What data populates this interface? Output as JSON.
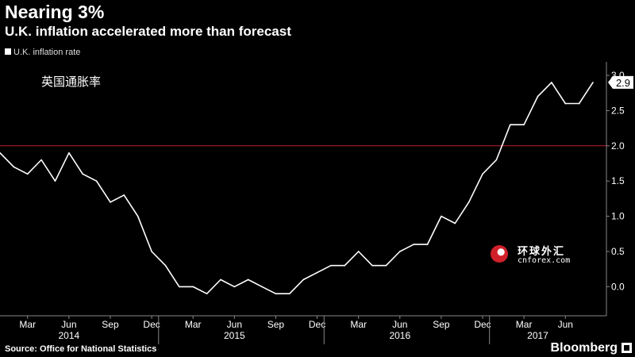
{
  "header": {
    "title": "Nearing 3%",
    "subtitle": "U.K. inflation accelerated more than forecast"
  },
  "legend": {
    "series_label": "U.K. inflation rate"
  },
  "annotation": "英国通胀率",
  "source": "Source: Office for National Statistics",
  "brand": "Bloomberg",
  "watermark": {
    "name": "环球外汇",
    "domain": "cnforex.com"
  },
  "colors": {
    "background": "#000000",
    "line": "#ffffff",
    "reference_line": "#c0202a",
    "last_value_label": "#ffffff"
  },
  "chart_data": {
    "type": "line",
    "title": "Nearing 3%",
    "subtitle": "U.K. inflation accelerated more than forecast",
    "x_unit": "month",
    "x_start": "2014-01",
    "x_end": "2017-08",
    "series": [
      {
        "name": "U.K. inflation rate",
        "points": [
          [
            "2014-01",
            1.9
          ],
          [
            "2014-02",
            1.7
          ],
          [
            "2014-03",
            1.6
          ],
          [
            "2014-04",
            1.8
          ],
          [
            "2014-05",
            1.5
          ],
          [
            "2014-06",
            1.9
          ],
          [
            "2014-07",
            1.6
          ],
          [
            "2014-08",
            1.5
          ],
          [
            "2014-09",
            1.2
          ],
          [
            "2014-10",
            1.3
          ],
          [
            "2014-11",
            1.0
          ],
          [
            "2014-12",
            0.5
          ],
          [
            "2015-01",
            0.3
          ],
          [
            "2015-02",
            0.0
          ],
          [
            "2015-03",
            0.0
          ],
          [
            "2015-04",
            -0.1
          ],
          [
            "2015-05",
            0.1
          ],
          [
            "2015-06",
            0.0
          ],
          [
            "2015-07",
            0.1
          ],
          [
            "2015-08",
            0.0
          ],
          [
            "2015-09",
            -0.1
          ],
          [
            "2015-10",
            -0.1
          ],
          [
            "2015-11",
            0.1
          ],
          [
            "2015-12",
            0.2
          ],
          [
            "2016-01",
            0.3
          ],
          [
            "2016-02",
            0.3
          ],
          [
            "2016-03",
            0.5
          ],
          [
            "2016-04",
            0.3
          ],
          [
            "2016-05",
            0.3
          ],
          [
            "2016-06",
            0.5
          ],
          [
            "2016-07",
            0.6
          ],
          [
            "2016-08",
            0.6
          ],
          [
            "2016-09",
            1.0
          ],
          [
            "2016-10",
            0.9
          ],
          [
            "2016-11",
            1.2
          ],
          [
            "2016-12",
            1.6
          ],
          [
            "2017-01",
            1.8
          ],
          [
            "2017-02",
            2.3
          ],
          [
            "2017-03",
            2.3
          ],
          [
            "2017-04",
            2.7
          ],
          [
            "2017-05",
            2.9
          ],
          [
            "2017-06",
            2.6
          ],
          [
            "2017-07",
            2.6
          ],
          [
            "2017-08",
            2.9
          ]
        ]
      }
    ],
    "reference_line": {
      "y": 2.0
    },
    "last_value_label": "2.9",
    "ylim": [
      -0.3,
      3.0
    ],
    "yticks": [
      0.0,
      0.5,
      1.0,
      1.5,
      2.0,
      2.5,
      3.0
    ],
    "ytick_labels": [
      "0.0",
      "0.5",
      "1.0",
      "1.5",
      "2.0",
      "2.5",
      "3.0"
    ],
    "xticks": [
      {
        "label": "Mar",
        "date": "2014-03"
      },
      {
        "label": "Jun",
        "date": "2014-06"
      },
      {
        "label": "Sep",
        "date": "2014-09"
      },
      {
        "label": "Dec",
        "date": "2014-12"
      },
      {
        "label": "Mar",
        "date": "2015-03"
      },
      {
        "label": "Jun",
        "date": "2015-06"
      },
      {
        "label": "Sep",
        "date": "2015-09"
      },
      {
        "label": "Dec",
        "date": "2015-12"
      },
      {
        "label": "Mar",
        "date": "2016-03"
      },
      {
        "label": "Jun",
        "date": "2016-06"
      },
      {
        "label": "Sep",
        "date": "2016-09"
      },
      {
        "label": "Dec",
        "date": "2016-12"
      },
      {
        "label": "Mar",
        "date": "2017-03"
      },
      {
        "label": "Jun",
        "date": "2017-06"
      }
    ],
    "years": [
      {
        "label": "2014",
        "date": "2014-06"
      },
      {
        "label": "2015",
        "date": "2015-06"
      },
      {
        "label": "2016",
        "date": "2016-06"
      },
      {
        "label": "2017",
        "date": "2017-04"
      }
    ],
    "year_separators": [
      "2014-12",
      "2015-12",
      "2016-12"
    ],
    "grid": false,
    "legend_position": "top-left",
    "y_axis_position": "right"
  }
}
